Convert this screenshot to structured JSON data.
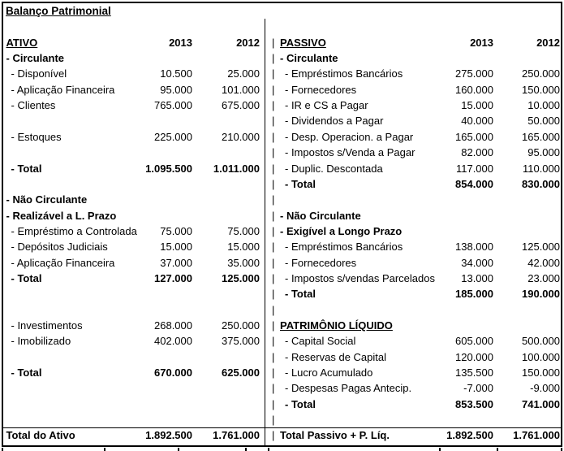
{
  "title": "Balanço Patrimonial",
  "pipe_char": "|",
  "years": [
    "2013",
    "2012"
  ],
  "colors": {
    "text": "#000000",
    "background": "#ffffff",
    "border": "#000000"
  },
  "ativo": {
    "header": "ATIVO",
    "rows": [
      {
        "style": "section",
        "label": "- Circulante"
      },
      {
        "style": "item",
        "label": "- Disponível",
        "v1": "10.500",
        "v2": "25.000"
      },
      {
        "style": "item",
        "label": "- Aplicação Financeira",
        "v1": "95.000",
        "v2": "101.000"
      },
      {
        "style": "item",
        "label": "- Clientes",
        "v1": "765.000",
        "v2": "675.000"
      },
      {
        "style": "blank"
      },
      {
        "style": "item",
        "label": "- Estoques",
        "v1": "225.000",
        "v2": "210.000"
      },
      {
        "style": "blank"
      },
      {
        "style": "total",
        "label": "- Total",
        "v1": "1.095.500",
        "v2": "1.011.000"
      },
      {
        "style": "blank"
      },
      {
        "style": "section",
        "label": "- Não Circulante"
      },
      {
        "style": "section",
        "label": "- Realizável a L. Prazo"
      },
      {
        "style": "item",
        "label": "- Empréstimo a Controlada",
        "v1": "75.000",
        "v2": "75.000"
      },
      {
        "style": "item",
        "label": "- Depósitos Judiciais",
        "v1": "15.000",
        "v2": "15.000"
      },
      {
        "style": "item",
        "label": "- Aplicação Financeira",
        "v1": "37.000",
        "v2": "35.000"
      },
      {
        "style": "total",
        "label": "- Total",
        "v1": "127.000",
        "v2": "125.000"
      },
      {
        "style": "blank"
      },
      {
        "style": "blank"
      },
      {
        "style": "item",
        "label": "- Investimentos",
        "v1": "268.000",
        "v2": "250.000"
      },
      {
        "style": "item",
        "label": "- Imobilizado",
        "v1": "402.000",
        "v2": "375.000"
      },
      {
        "style": "blank"
      },
      {
        "style": "total",
        "label": "- Total",
        "v1": "670.000",
        "v2": "625.000"
      },
      {
        "style": "blank"
      },
      {
        "style": "blank"
      },
      {
        "style": "blank"
      }
    ],
    "footer": {
      "label": "Total do Ativo",
      "v1": "1.892.500",
      "v2": "1.761.000"
    }
  },
  "passivo": {
    "header": "PASSIVO",
    "rows": [
      {
        "style": "section",
        "label": "- Circulante"
      },
      {
        "style": "item",
        "label": "- Empréstimos Bancários",
        "v1": "275.000",
        "v2": "250.000"
      },
      {
        "style": "item",
        "label": "- Fornecedores",
        "v1": "160.000",
        "v2": "150.000"
      },
      {
        "style": "item",
        "label": "- IR e CS a Pagar",
        "v1": "15.000",
        "v2": "10.000"
      },
      {
        "style": "item",
        "label": "- Dividendos a Pagar",
        "v1": "40.000",
        "v2": "50.000"
      },
      {
        "style": "item",
        "label": "- Desp. Operacion. a Pagar",
        "v1": "165.000",
        "v2": "165.000"
      },
      {
        "style": "item",
        "label": "- Impostos s/Venda a Pagar",
        "v1": "82.000",
        "v2": "95.000"
      },
      {
        "style": "item",
        "label": "- Duplic. Descontada",
        "v1": "117.000",
        "v2": "110.000"
      },
      {
        "style": "total",
        "label": "- Total",
        "v1": "854.000",
        "v2": "830.000"
      },
      {
        "style": "blank"
      },
      {
        "style": "section",
        "label": "- Não Circulante"
      },
      {
        "style": "section",
        "label": "- Exigível a Longo Prazo"
      },
      {
        "style": "item",
        "label": "- Empréstimos Bancários",
        "v1": "138.000",
        "v2": "125.000"
      },
      {
        "style": "item",
        "label": "- Fornecedores",
        "v1": "34.000",
        "v2": "42.000"
      },
      {
        "style": "item",
        "label": "- Impostos s/vendas Parcelados",
        "v1": "13.000",
        "v2": "23.000"
      },
      {
        "style": "total",
        "label": "- Total",
        "v1": "185.000",
        "v2": "190.000"
      },
      {
        "style": "blank"
      },
      {
        "style": "heading",
        "label": "PATRIMÔNIO LÍQUIDO"
      },
      {
        "style": "item",
        "label": "- Capital Social",
        "v1": "605.000",
        "v2": "500.000"
      },
      {
        "style": "item",
        "label": "- Reservas de Capital",
        "v1": "120.000",
        "v2": "100.000"
      },
      {
        "style": "item",
        "label": "- Lucro Acumulado",
        "v1": "135.500",
        "v2": "150.000"
      },
      {
        "style": "item",
        "label": "- Despesas Pagas Antecip.",
        "v1": "-7.000",
        "v2": "-9.000"
      },
      {
        "style": "total",
        "label": "- Total",
        "v1": "853.500",
        "v2": "741.000"
      },
      {
        "style": "blank"
      }
    ],
    "footer": {
      "label": "Total Passivo + P. Líq.",
      "v1": "1.892.500",
      "v2": "1.761.000"
    }
  }
}
